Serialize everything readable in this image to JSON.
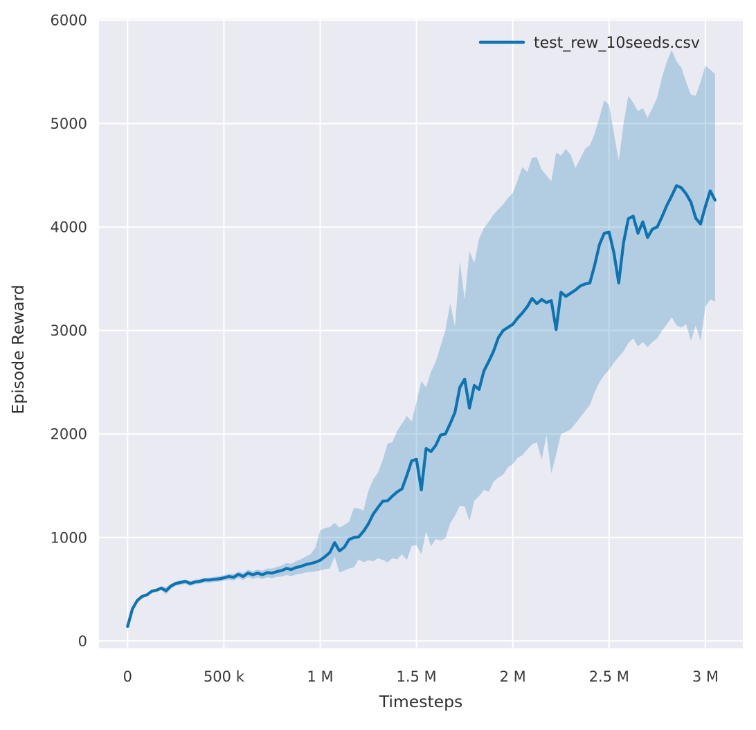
{
  "chart_data": {
    "type": "line",
    "title": "",
    "xlabel": "Timesteps",
    "ylabel": "Episode Reward",
    "grid": true,
    "background_color": "#eaeaf2",
    "grid_color": "#ffffff",
    "line_color": "#0d73b1",
    "band_color": "#0d73b1",
    "band_opacity": 0.25,
    "legend_position": "upper right",
    "legend": [
      {
        "label": "test_rew_10seeds.csv",
        "color": "#0d73b1"
      }
    ],
    "x_unit": "timesteps (thousands)",
    "xlim_k": [
      -148,
      3195
    ],
    "ylim": [
      -75,
      6010
    ],
    "x_ticks": [
      {
        "v": 0,
        "label": "0"
      },
      {
        "v": 500,
        "label": "500 k"
      },
      {
        "v": 1000,
        "label": "1 M"
      },
      {
        "v": 1500,
        "label": "1.5 M"
      },
      {
        "v": 2000,
        "label": "2 M"
      },
      {
        "v": 2500,
        "label": "2.5 M"
      },
      {
        "v": 3000,
        "label": "3 M"
      }
    ],
    "y_ticks": [
      {
        "v": 0,
        "label": "0"
      },
      {
        "v": 1000,
        "label": "1000"
      },
      {
        "v": 2000,
        "label": "2000"
      },
      {
        "v": 3000,
        "label": "3000"
      },
      {
        "v": 4000,
        "label": "4000"
      },
      {
        "v": 5000,
        "label": "5000"
      },
      {
        "v": 6000,
        "label": "6000"
      }
    ],
    "series": [
      {
        "name": "test_rew_10seeds.csv",
        "x_k": [
          0,
          25,
          50,
          75,
          100,
          125,
          150,
          175,
          200,
          225,
          250,
          275,
          300,
          325,
          350,
          375,
          400,
          425,
          450,
          475,
          500,
          525,
          550,
          575,
          600,
          625,
          650,
          675,
          700,
          725,
          750,
          775,
          800,
          825,
          850,
          875,
          900,
          925,
          950,
          975,
          1000,
          1025,
          1050,
          1075,
          1100,
          1125,
          1150,
          1175,
          1200,
          1225,
          1250,
          1275,
          1300,
          1325,
          1350,
          1375,
          1400,
          1425,
          1450,
          1475,
          1500,
          1525,
          1550,
          1575,
          1600,
          1625,
          1650,
          1675,
          1700,
          1725,
          1750,
          1775,
          1800,
          1825,
          1850,
          1875,
          1900,
          1925,
          1950,
          1975,
          2000,
          2025,
          2050,
          2075,
          2100,
          2125,
          2150,
          2175,
          2200,
          2225,
          2250,
          2275,
          2300,
          2325,
          2350,
          2375,
          2400,
          2425,
          2450,
          2475,
          2500,
          2525,
          2550,
          2575,
          2600,
          2625,
          2650,
          2675,
          2700,
          2725,
          2750,
          2775,
          2800,
          2825,
          2850,
          2875,
          2900,
          2925,
          2950,
          2975,
          3000,
          3025,
          3050
        ],
        "mean": [
          140,
          310,
          390,
          430,
          445,
          480,
          490,
          510,
          485,
          530,
          556,
          565,
          576,
          556,
          570,
          576,
          589,
          589,
          596,
          600,
          609,
          623,
          615,
          643,
          623,
          656,
          640,
          656,
          640,
          660,
          655,
          670,
          680,
          700,
          690,
          710,
          720,
          738,
          748,
          760,
          780,
          815,
          855,
          950,
          870,
          905,
          980,
          1000,
          1005,
          1060,
          1130,
          1225,
          1290,
          1350,
          1355,
          1400,
          1440,
          1470,
          1600,
          1740,
          1755,
          1460,
          1860,
          1830,
          1890,
          1990,
          2000,
          2100,
          2210,
          2450,
          2530,
          2250,
          2470,
          2430,
          2610,
          2700,
          2800,
          2930,
          3000,
          3030,
          3060,
          3120,
          3170,
          3230,
          3310,
          3260,
          3300,
          3270,
          3290,
          3010,
          3370,
          3330,
          3360,
          3390,
          3430,
          3450,
          3460,
          3630,
          3830,
          3940,
          3950,
          3750,
          3460,
          3850,
          4080,
          4105,
          3940,
          4050,
          3900,
          3980,
          4000,
          4100,
          4210,
          4300,
          4400,
          4380,
          4320,
          4240,
          4085,
          4030,
          4200,
          4350,
          4260
        ],
        "band_lower": [
          125,
          295,
          375,
          415,
          430,
          462,
          472,
          490,
          450,
          505,
          532,
          540,
          552,
          530,
          546,
          552,
          565,
          562,
          570,
          574,
          580,
          592,
          582,
          608,
          588,
          618,
          600,
          614,
          598,
          615,
          608,
          620,
          622,
          638,
          626,
          642,
          650,
          662,
          665,
          672,
          680,
          695,
          700,
          817,
          660,
          680,
          700,
          710,
          790,
          760,
          780,
          770,
          800,
          783,
          760,
          800,
          790,
          838,
          784,
          920,
          924,
          840,
          1058,
          917,
          984,
          970,
          991,
          1138,
          1210,
          1306,
          1300,
          1158,
          1353,
          1400,
          1460,
          1440,
          1540,
          1580,
          1607,
          1680,
          1708,
          1770,
          1795,
          1850,
          1900,
          1920,
          1750,
          1990,
          1620,
          1800,
          2000,
          2020,
          2045,
          2100,
          2160,
          2220,
          2280,
          2400,
          2500,
          2570,
          2620,
          2690,
          2745,
          2800,
          2880,
          2925,
          2845,
          2890,
          2840,
          2890,
          2925,
          3000,
          3060,
          3130,
          3050,
          3030,
          3060,
          2900,
          3050,
          2900,
          3230,
          3300,
          3280
        ],
        "band_upper": [
          155,
          325,
          405,
          445,
          462,
          498,
          508,
          530,
          520,
          552,
          576,
          586,
          596,
          580,
          592,
          600,
          610,
          612,
          620,
          626,
          635,
          650,
          645,
          672,
          655,
          688,
          675,
          690,
          678,
          700,
          700,
          715,
          728,
          752,
          745,
          770,
          790,
          815,
          840,
          900,
          1070,
          1090,
          1100,
          1140,
          1095,
          1120,
          1150,
          1285,
          1280,
          1260,
          1450,
          1560,
          1627,
          1750,
          1908,
          1922,
          2030,
          2100,
          2175,
          2120,
          2310,
          2512,
          2450,
          2600,
          2700,
          2850,
          3000,
          3260,
          3035,
          3670,
          3295,
          3765,
          3650,
          3885,
          3990,
          4050,
          4120,
          4170,
          4220,
          4280,
          4330,
          4450,
          4580,
          4530,
          4670,
          4674,
          4553,
          4500,
          4440,
          4720,
          4690,
          4754,
          4700,
          4570,
          4660,
          4754,
          4790,
          4900,
          5060,
          5225,
          5180,
          4900,
          4640,
          5000,
          5270,
          5200,
          5120,
          5150,
          5055,
          5150,
          5250,
          5450,
          5600,
          5710,
          5600,
          5540,
          5400,
          5280,
          5270,
          5400,
          5560,
          5520,
          5480
        ]
      }
    ]
  }
}
